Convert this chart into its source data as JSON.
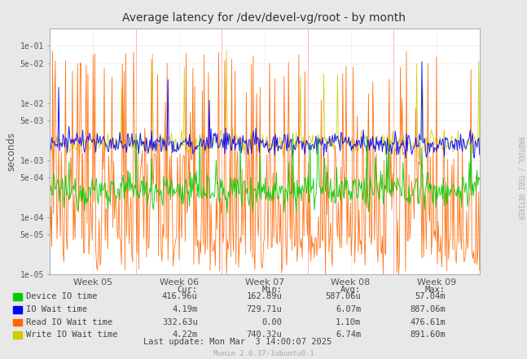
{
  "title": "Average latency for /dev/devel-vg/root - by month",
  "ylabel": "seconds",
  "xlabel_ticks": [
    "Week 05",
    "Week 06",
    "Week 07",
    "Week 08",
    "Week 09"
  ],
  "ylim_min": 1e-05,
  "ylim_max": 0.2,
  "bg_color": "#e8e8e8",
  "plot_bg_color": "#ffffff",
  "grid_color": "#d0d0d0",
  "title_color": "#333333",
  "legend_items": [
    {
      "label": "Device IO time",
      "color": "#00cc00"
    },
    {
      "label": "IO Wait time",
      "color": "#0000ff"
    },
    {
      "label": "Read IO Wait time",
      "color": "#ff6600"
    },
    {
      "label": "Write IO Wait time",
      "color": "#cccc00"
    }
  ],
  "legend_stats": {
    "headers": [
      "Cur:",
      "Min:",
      "Avg:",
      "Max:"
    ],
    "rows": [
      [
        "416.96u",
        "162.89u",
        "587.06u",
        "57.04m"
      ],
      [
        "4.19m",
        "729.71u",
        "6.07m",
        "887.06m"
      ],
      [
        "332.63u",
        "0.00",
        "1.10m",
        "476.61m"
      ],
      [
        "4.22m",
        "740.32u",
        "6.74m",
        "891.60m"
      ]
    ]
  },
  "last_update": "Last update: Mon Mar  3 14:00:07 2025",
  "munin_version": "Munin 2.0.37-1ubuntu0.1",
  "right_label": "RRDTOOL / TOBI OETIKER",
  "vline_color": "#ffaaaa",
  "ytick_labels": [
    "1e-05",
    "5e-05",
    "1e-04",
    "5e-04",
    "1e-03",
    "5e-03",
    "1e-02",
    "5e-02",
    "1e-01"
  ],
  "ytick_values": [
    1e-05,
    5e-05,
    0.0001,
    0.0005,
    0.001,
    0.005,
    0.01,
    0.05,
    0.1
  ],
  "num_points": 500
}
